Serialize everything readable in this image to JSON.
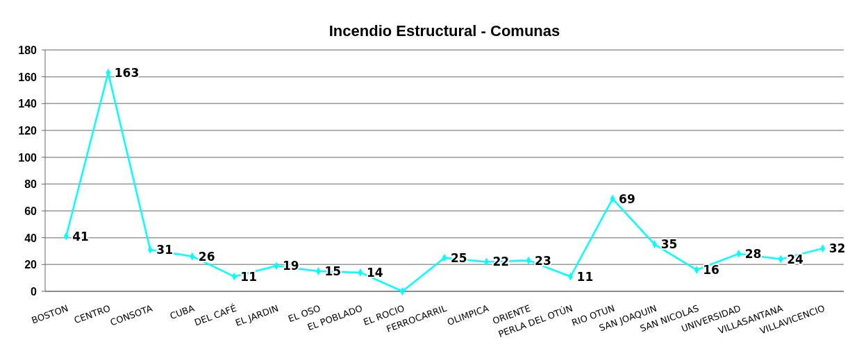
{
  "chart_data": {
    "type": "line",
    "title": "Incendio Estructural - Comunas",
    "categories": [
      "BOSTON",
      "CENTRO",
      "CONSOTA",
      "CUBA",
      "DEL CAFÉ",
      "EL JARDIN",
      "EL OSO",
      "EL POBLADO",
      "EL ROCIO",
      "FERROCARRIL",
      "OLIMPICA",
      "ORIENTE",
      "PERLA DEL OTÚN",
      "RIO OTUN",
      "SAN JOAQUIN",
      "SAN NICOLAS",
      "UNIVERSIDAD",
      "VILLASANTANA",
      "VILLAVICENCIO"
    ],
    "series": [
      {
        "color": "#00ffff",
        "values": [
          41,
          163,
          31,
          26,
          11,
          19,
          15,
          14,
          0,
          25,
          22,
          23,
          11,
          69,
          35,
          16,
          28,
          24,
          32
        ],
        "value_labels": [
          "41",
          "163",
          "31",
          "26",
          "11",
          "19",
          "15",
          "14",
          null,
          "25",
          "22",
          "23",
          "11",
          "69",
          "35",
          "16",
          "28",
          "24",
          "32"
        ]
      }
    ],
    "ylim": [
      0,
      180
    ],
    "yticks": [
      0,
      20,
      40,
      60,
      80,
      100,
      120,
      140,
      160,
      180
    ],
    "grid": "y",
    "marker": "diamond",
    "line_style": "solid"
  }
}
